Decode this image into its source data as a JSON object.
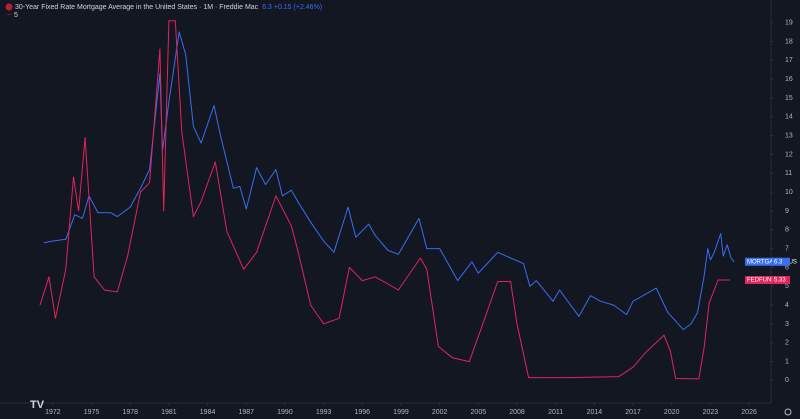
{
  "chart_data": {
    "type": "line",
    "title": "30-Year Fixed Rate Mortgage Average in the United States · 1M · Freddie Mac",
    "header_value": "6.3 +0.15 (+2.46%)",
    "subtitle": "5",
    "xlim": [
      1967.9,
      2027.7
    ],
    "xticks": [
      1972,
      1975,
      1978,
      1981,
      1984,
      1987,
      1990,
      1993,
      1996,
      1999,
      2002,
      2005,
      2008,
      2011,
      2014,
      2017,
      2020,
      2023,
      2026
    ],
    "ylim": [
      -1.2,
      20.2
    ],
    "yticks": [
      0,
      1,
      2,
      3,
      4,
      5,
      6,
      7,
      8,
      9,
      10,
      11,
      12,
      13,
      14,
      15,
      16,
      17,
      18,
      19
    ],
    "grid": false,
    "series": [
      {
        "name": "MORTGAGE30US",
        "color": "#3a6df0",
        "x": [
          1971.3,
          1972,
          1973,
          1973.7,
          1974.3,
          1974.8,
          1975.5,
          1976.5,
          1977,
          1978,
          1978.8,
          1979.5,
          1980.3,
          1980.5,
          1981,
          1981.8,
          1982.3,
          1982.9,
          1983.5,
          1984.5,
          1985,
          1986,
          1986.5,
          1987,
          1987.8,
          1988.5,
          1989.3,
          1989.8,
          1990.5,
          1991,
          1992,
          1993,
          1993.8,
          1994.9,
          1995.5,
          1996.5,
          1997,
          1998,
          1998.8,
          2000.4,
          2001,
          2002,
          2003.4,
          2004.5,
          2005,
          2006.5,
          2007.5,
          2008.5,
          2009,
          2009.5,
          2010.8,
          2011.3,
          2012.8,
          2013.7,
          2014.5,
          2015.5,
          2016.5,
          2017,
          2018.8,
          2019.7,
          2020.9,
          2021.5,
          2022.0,
          2022.5,
          2022.8,
          2023.0,
          2023.3,
          2023.8,
          2024.0,
          2024.3,
          2024.6,
          2024.85
        ],
        "values": [
          7.3,
          7.4,
          7.5,
          8.8,
          8.6,
          9.8,
          8.9,
          8.9,
          8.7,
          9.2,
          10.2,
          11.2,
          16.3,
          12.2,
          14.8,
          18.5,
          17.3,
          13.5,
          12.6,
          14.6,
          13,
          10.2,
          10.3,
          9.1,
          11.3,
          10.4,
          11.2,
          9.8,
          10.1,
          9.5,
          8.4,
          7.4,
          6.8,
          9.2,
          7.6,
          8.3,
          7.7,
          6.9,
          6.7,
          8.6,
          7.0,
          7.0,
          5.3,
          6.3,
          5.7,
          6.8,
          6.5,
          6.2,
          5.0,
          5.3,
          4.2,
          4.8,
          3.4,
          4.5,
          4.2,
          4.0,
          3.5,
          4.2,
          4.9,
          3.6,
          2.7,
          3.0,
          3.6,
          5.5,
          7.0,
          6.4,
          6.8,
          7.8,
          6.6,
          7.2,
          6.5,
          6.3
        ]
      },
      {
        "name": "FEDFUNDS",
        "color": "#e0245e",
        "x": [
          1971.0,
          1971.7,
          1972.2,
          1973,
          1973.6,
          1974.0,
          1974.5,
          1975.2,
          1976,
          1977,
          1977.8,
          1978.8,
          1979.5,
          1980.3,
          1980.6,
          1981,
          1981.5,
          1982,
          1982.9,
          1983.5,
          1984.6,
          1985.5,
          1986.8,
          1987.8,
          1989.3,
          1990.5,
          1991,
          1992,
          1993,
          1994.2,
          1995,
          1996,
          1997,
          1998.8,
          2000.5,
          2001,
          2001.9,
          2003,
          2004.3,
          2005.5,
          2006.5,
          2007.5,
          2008,
          2008.9,
          2012,
          2015.9,
          2017,
          2018,
          2019.4,
          2019.9,
          2020.3,
          2022.1,
          2022.5,
          2022.9,
          2023.6,
          2024.5
        ],
        "values": [
          4.0,
          5.5,
          3.3,
          5.9,
          10.8,
          9.0,
          12.9,
          5.5,
          4.8,
          4.7,
          6.6,
          10.0,
          10.5,
          17.6,
          9.0,
          19.1,
          19.1,
          13.2,
          8.7,
          9.5,
          11.6,
          7.9,
          5.9,
          6.8,
          9.8,
          8.2,
          6.9,
          4.0,
          3.0,
          3.3,
          6.0,
          5.3,
          5.5,
          4.8,
          6.5,
          5.9,
          1.8,
          1.2,
          1.0,
          3.3,
          5.25,
          5.25,
          3.0,
          0.15,
          0.15,
          0.2,
          0.7,
          1.5,
          2.4,
          1.55,
          0.1,
          0.08,
          1.7,
          4.1,
          5.33,
          5.33
        ]
      }
    ]
  }
}
